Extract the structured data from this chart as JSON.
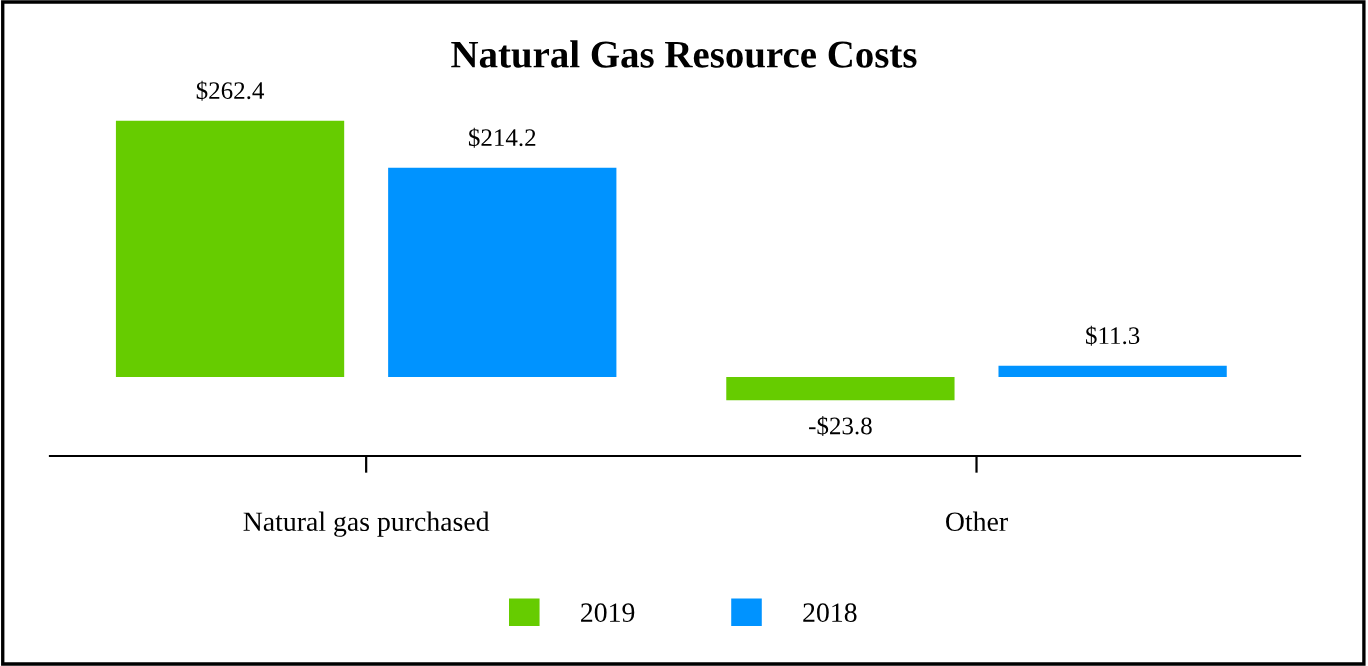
{
  "chart_data": {
    "type": "bar",
    "title": "Natural Gas Resource Costs",
    "categories": [
      "Natural gas purchased",
      "Other"
    ],
    "series": [
      {
        "name": "2019",
        "color": "#66cc00",
        "values": [
          262.4,
          -23.8
        ],
        "value_labels": [
          "$262.4",
          "-$23.8"
        ]
      },
      {
        "name": "2018",
        "color": "#0093ff",
        "values": [
          214.2,
          11.3
        ],
        "value_labels": [
          "$214.2",
          "$11.3"
        ]
      }
    ],
    "legend": "bottom",
    "grid": false
  }
}
